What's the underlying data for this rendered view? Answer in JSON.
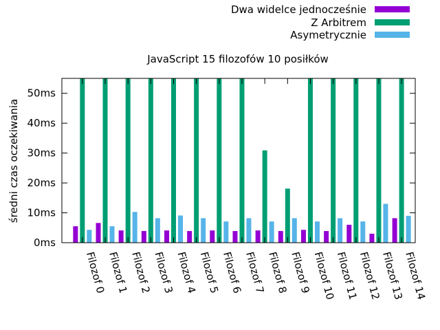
{
  "chart_data": {
    "type": "bar",
    "title": "JavaScript 15 filozofów 10 posiłków",
    "xlabel": "",
    "ylabel": "średni czas oczekiwania",
    "ylim": [
      0,
      55
    ],
    "yticks": [
      0,
      10,
      20,
      30,
      40,
      50
    ],
    "ytick_labels": [
      "0ms",
      "10ms",
      "20ms",
      "30ms",
      "40ms",
      "50ms"
    ],
    "grid": false,
    "legend_position": "top-right",
    "categories": [
      "Filozof 0",
      "Filozof 1",
      "Filozof 2",
      "Filozof 3",
      "Filozof 4",
      "Filozof 5",
      "Filozof 6",
      "Filozof 7",
      "Filozof 8",
      "Filozof 9",
      "Filozof 10",
      "Filozof 11",
      "Filozof 12",
      "Filozof 13",
      "Filozof 14"
    ],
    "series": [
      {
        "name": "Dwa widelce jednocześnie",
        "color": "#9400d3",
        "values": [
          5.5,
          6.6,
          4.1,
          3.9,
          4.1,
          3.9,
          4.1,
          3.9,
          4.1,
          3.9,
          4.3,
          3.9,
          6.0,
          3.0,
          8.2
        ]
      },
      {
        "name": "Z Arbitrem",
        "color": "#009e73",
        "values": [
          55,
          55,
          55,
          55,
          55,
          55,
          55,
          55,
          30.9,
          18.1,
          55,
          55,
          55,
          55,
          55
        ]
      },
      {
        "name": "Asymetrycznie",
        "color": "#56b4e9",
        "values": [
          4.3,
          5.5,
          10.3,
          8.2,
          9.1,
          8.2,
          7.1,
          8.2,
          7.1,
          8.2,
          7.1,
          8.2,
          7.1,
          13.0,
          9.0
        ]
      }
    ]
  }
}
